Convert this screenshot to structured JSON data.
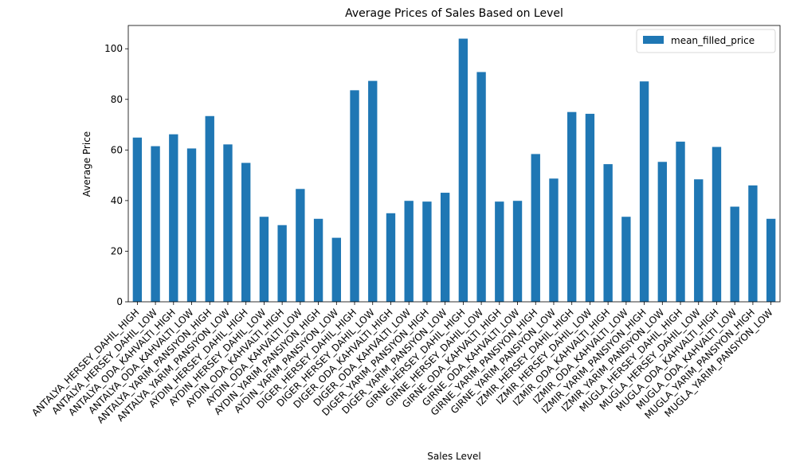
{
  "chart_data": {
    "type": "bar",
    "title": "Average Prices of Sales Based on Level",
    "xlabel": "Sales Level",
    "ylabel": "Average Price",
    "ylim": [
      0,
      109.2
    ],
    "yticks": [
      0,
      20,
      40,
      60,
      80,
      100
    ],
    "legend_position": "top-right",
    "grid": false,
    "bar_color": "#1f77b4",
    "categories": [
      "ANTALYA_HERSEY_DAHIL_HIGH",
      "ANTALYA_HERSEY_DAHIL_LOW",
      "ANTALYA_ODA_KAHVALTI_HIGH",
      "ANTALYA_ODA_KAHVALTI_LOW",
      "ANTALYA_YARIM_PANSIYON_HIGH",
      "ANTALYA_YARIM_PANSIYON_LOW",
      "AYDIN_HERSEY_DAHIL_HIGH",
      "AYDIN_HERSEY_DAHIL_LOW",
      "AYDIN_ODA_KAHVALTI_HIGH",
      "AYDIN_ODA_KAHVALTI_LOW",
      "AYDIN_YARIM_PANSIYON_HIGH",
      "AYDIN_YARIM_PANSIYON_LOW",
      "DIGER_HERSEY_DAHIL_HIGH",
      "DIGER_HERSEY_DAHIL_LOW",
      "DIGER_ODA_KAHVALTI_HIGH",
      "DIGER_ODA_KAHVALTI_LOW",
      "DIGER_YARIM_PANSIYON_HIGH",
      "DIGER_YARIM_PANSIYON_LOW",
      "GIRNE_HERSEY_DAHIL_HIGH",
      "GIRNE_HERSEY_DAHIL_LOW",
      "GIRNE_ODA_KAHVALTI_HIGH",
      "GIRNE_ODA_KAHVALTI_LOW",
      "GIRNE_YARIM_PANSIYON_HIGH",
      "GIRNE_YARIM_PANSIYON_LOW",
      "IZMIR_HERSEY_DAHIL_HIGH",
      "IZMIR_HERSEY_DAHIL_LOW",
      "IZMIR_ODA_KAHVALTI_HIGH",
      "IZMIR_ODA_KAHVALTI_LOW",
      "IZMIR_YARIM_PANSIYON_HIGH",
      "IZMIR_YARIM_PANSIYON_LOW",
      "MUGLA_HERSEY_DAHIL_HIGH",
      "MUGLA_HERSEY_DAHIL_LOW",
      "MUGLA_ODA_KAHVALTI_HIGH",
      "MUGLA_ODA_KAHVALTI_LOW",
      "MUGLA_YARIM_PANSIYON_HIGH",
      "MUGLA_YARIM_PANSIYON_LOW"
    ],
    "series": [
      {
        "name": "mean_filled_price",
        "values": [
          64.9,
          61.5,
          66.2,
          60.6,
          73.4,
          62.2,
          54.9,
          33.6,
          30.3,
          44.6,
          32.8,
          25.3,
          83.6,
          87.3,
          35.0,
          39.9,
          39.6,
          43.1,
          104.0,
          90.8,
          39.6,
          39.9,
          58.4,
          48.7,
          75.0,
          74.3,
          54.4,
          33.6,
          87.1,
          55.3,
          63.3,
          48.4,
          61.2,
          37.6,
          46.0,
          32.8
        ]
      }
    ]
  }
}
